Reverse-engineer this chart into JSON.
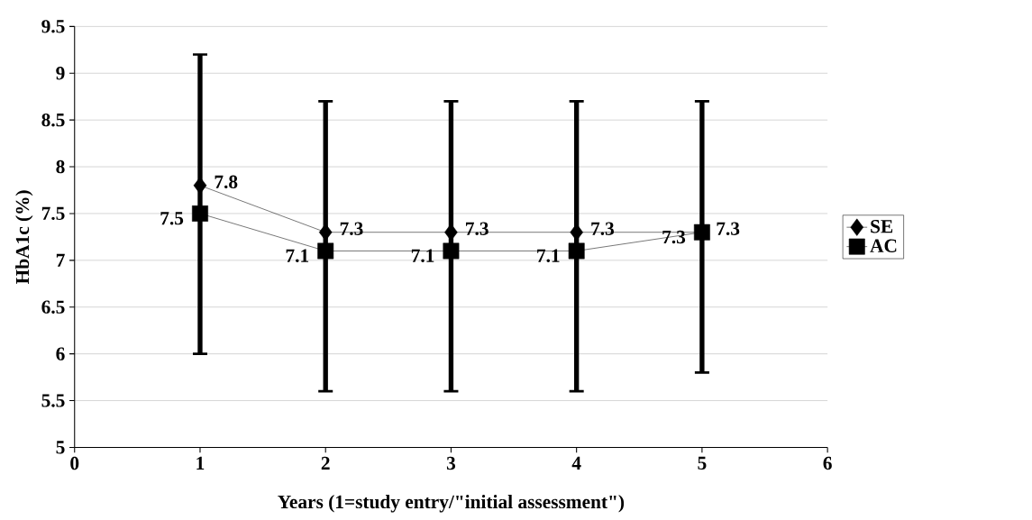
{
  "chart_data": {
    "type": "line",
    "xlabel": "Years (1=study entry/\"initial assessment\")",
    "ylabel": "HbA1c (%)",
    "x": [
      1,
      2,
      3,
      4,
      5
    ],
    "series": [
      {
        "name": "SE",
        "color": "#000000",
        "marker": "diamond",
        "values": [
          7.8,
          7.3,
          7.3,
          7.3,
          7.3
        ],
        "errors": [
          [
            6.0,
            9.2
          ],
          [
            5.6,
            8.7
          ],
          [
            5.6,
            8.7
          ],
          [
            5.6,
            8.7
          ],
          [
            5.8,
            8.7
          ]
        ]
      },
      {
        "name": "AC",
        "color": "#000000",
        "marker": "square",
        "values": [
          7.5,
          7.1,
          7.1,
          7.1,
          7.3
        ]
      }
    ],
    "xlim": [
      0,
      6
    ],
    "xticks": [
      0,
      1,
      2,
      3,
      4,
      5,
      6
    ],
    "ylim": [
      5,
      9.5
    ],
    "yticks": [
      5,
      5.5,
      6,
      6.5,
      7,
      7.5,
      8,
      8.5,
      9,
      9.5
    ],
    "grid": "y",
    "legend": "right",
    "data_labels": true
  }
}
